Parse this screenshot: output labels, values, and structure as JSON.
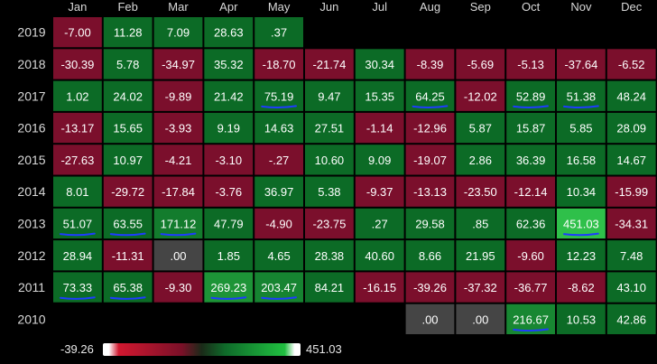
{
  "chart_data": {
    "type": "heatmap",
    "months": [
      "Jan",
      "Feb",
      "Mar",
      "Apr",
      "May",
      "Jun",
      "Jul",
      "Aug",
      "Sep",
      "Oct",
      "Nov",
      "Dec"
    ],
    "years": [
      "2019",
      "2018",
      "2017",
      "2016",
      "2015",
      "2014",
      "2013",
      "2012",
      "2011",
      "2010"
    ],
    "cells": [
      [
        "-7.00",
        "11.28",
        "7.09",
        "28.63",
        ".37",
        null,
        null,
        null,
        null,
        null,
        null,
        null
      ],
      [
        "-30.39",
        "5.78",
        "-34.97",
        "35.32",
        "-18.70",
        "-21.74",
        "30.34",
        "-8.39",
        "-5.69",
        "-5.13",
        "-37.64",
        "-6.52"
      ],
      [
        "1.02",
        "24.02",
        "-9.89",
        "21.42",
        "75.19",
        "9.47",
        "15.35",
        "64.25",
        "-12.02",
        "52.89",
        "51.38",
        "48.24"
      ],
      [
        "-13.17",
        "15.65",
        "-3.93",
        "9.19",
        "14.63",
        "27.51",
        "-1.14",
        "-12.96",
        "5.87",
        "15.87",
        "5.85",
        "28.09"
      ],
      [
        "-27.63",
        "10.97",
        "-4.21",
        "-3.10",
        "-.27",
        "10.60",
        "9.09",
        "-19.07",
        "2.86",
        "36.39",
        "16.58",
        "14.67"
      ],
      [
        "8.01",
        "-29.72",
        "-17.84",
        "-3.76",
        "36.97",
        "5.38",
        "-9.37",
        "-13.13",
        "-23.50",
        "-12.14",
        "10.34",
        "-15.99"
      ],
      [
        "51.07",
        "63.55",
        "171.12",
        "47.79",
        "-4.90",
        "-23.75",
        ".27",
        "29.58",
        ".85",
        "62.36",
        "451.03",
        "-34.31"
      ],
      [
        "28.94",
        "-11.31",
        ".00",
        "1.85",
        "4.65",
        "28.38",
        "40.60",
        "8.66",
        "21.95",
        "-9.60",
        "12.23",
        "7.48"
      ],
      [
        "73.33",
        "65.38",
        "-9.30",
        "269.23",
        "203.47",
        "84.21",
        "-16.15",
        "-39.26",
        "-37.32",
        "-36.77",
        "-8.62",
        "43.10"
      ],
      [
        null,
        null,
        null,
        null,
        null,
        null,
        null,
        ".00",
        ".00",
        "216.67",
        "10.53",
        "42.86"
      ]
    ],
    "underlined": [
      [
        2,
        4
      ],
      [
        2,
        7
      ],
      [
        2,
        9
      ],
      [
        2,
        10
      ],
      [
        6,
        0
      ],
      [
        6,
        1
      ],
      [
        6,
        2
      ],
      [
        6,
        10
      ],
      [
        8,
        0
      ],
      [
        8,
        1
      ],
      [
        8,
        3
      ],
      [
        8,
        4
      ],
      [
        9,
        9
      ]
    ],
    "color_scale": {
      "min": "-39.26",
      "max": "451.03",
      "negative_color": "#7b0f2c",
      "positive_color": "#0c6b26",
      "bright_positive_color": "#2fc04a",
      "zero_color": "#454545"
    }
  }
}
